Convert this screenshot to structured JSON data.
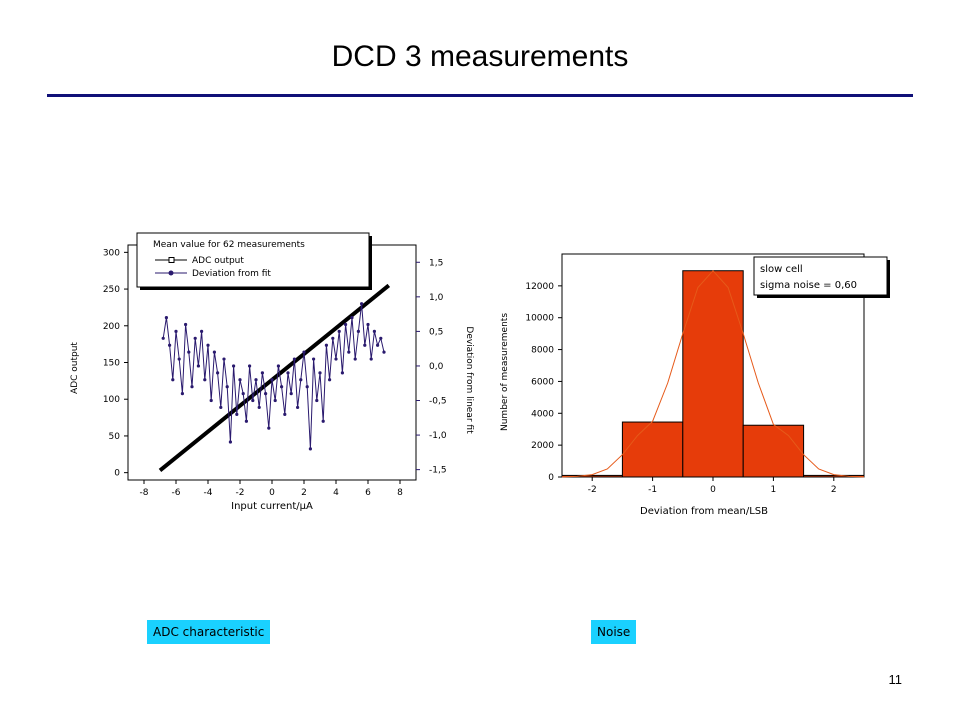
{
  "slide": {
    "title": "DCD 3 measurements",
    "page_number": "11",
    "captions": {
      "left": "ADC characteristic",
      "right": "Noise"
    },
    "colors": {
      "title_rule": "#101078",
      "caption_bg": "#1ad1ff",
      "adc_line": "#000000",
      "deviation_line": "#2a1a6e",
      "histogram_fill": "#e63c0a",
      "fit_curve": "#e65a1a"
    }
  },
  "chart_data": [
    {
      "type": "line",
      "xlabel": "Input current/µA",
      "ylabel": "ADC output",
      "y2label": "Deviation from linear fit",
      "xlim": [
        -9,
        9
      ],
      "ylim": [
        -10,
        310
      ],
      "y2lim": [
        -1.65,
        1.75
      ],
      "xticks": [
        "-8",
        "-6",
        "-4",
        "-2",
        "0",
        "2",
        "4",
        "6",
        "8"
      ],
      "yticks": [
        "0",
        "50",
        "100",
        "150",
        "200",
        "250",
        "300"
      ],
      "y2ticks": [
        "-1,5",
        "-1,0",
        "-0,5",
        "0,0",
        "0,5",
        "1,0",
        "1,5"
      ],
      "legend": {
        "title": "Mean value for 62 measurements",
        "entries": [
          "ADC output",
          "Deviation from fit"
        ],
        "placement": "top-left"
      },
      "series": [
        {
          "name": "ADC output",
          "axis": "left",
          "x": [
            -7.0,
            7.3
          ],
          "y": [
            3,
            255
          ]
        },
        {
          "name": "Deviation from fit",
          "axis": "right",
          "x": [
            -6.8,
            -6.6,
            -6.4,
            -6.2,
            -6.0,
            -5.8,
            -5.6,
            -5.4,
            -5.2,
            -5.0,
            -4.8,
            -4.6,
            -4.4,
            -4.2,
            -4.0,
            -3.8,
            -3.6,
            -3.4,
            -3.2,
            -3.0,
            -2.8,
            -2.6,
            -2.4,
            -2.2,
            -2.0,
            -1.8,
            -1.6,
            -1.4,
            -1.2,
            -1.0,
            -0.8,
            -0.6,
            -0.4,
            -0.2,
            0.0,
            0.2,
            0.4,
            0.6,
            0.8,
            1.0,
            1.2,
            1.4,
            1.6,
            1.8,
            2.0,
            2.2,
            2.4,
            2.6,
            2.8,
            3.0,
            3.2,
            3.4,
            3.6,
            3.8,
            4.0,
            4.2,
            4.4,
            4.6,
            4.8,
            5.0,
            5.2,
            5.4,
            5.6,
            5.8,
            6.0,
            6.2,
            6.4,
            6.6,
            6.8,
            7.0
          ],
          "y": [
            0.4,
            0.7,
            0.3,
            -0.2,
            0.5,
            0.1,
            -0.4,
            0.6,
            0.2,
            -0.3,
            0.4,
            0.0,
            0.5,
            -0.2,
            0.3,
            -0.5,
            0.2,
            -0.1,
            -0.6,
            0.1,
            -0.3,
            -1.1,
            0.0,
            -0.7,
            -0.2,
            -0.4,
            -0.8,
            0.0,
            -0.5,
            -0.2,
            -0.6,
            -0.1,
            -0.4,
            -0.9,
            -0.2,
            -0.5,
            0.0,
            -0.3,
            -0.7,
            -0.1,
            -0.4,
            0.1,
            -0.6,
            -0.2,
            0.2,
            -0.3,
            -1.2,
            0.1,
            -0.5,
            -0.1,
            -0.8,
            0.3,
            -0.2,
            0.4,
            0.1,
            0.5,
            -0.1,
            0.6,
            0.2,
            0.7,
            0.1,
            0.5,
            0.9,
            0.3,
            0.6,
            0.1,
            0.5,
            0.3,
            0.4,
            0.2
          ]
        }
      ]
    },
    {
      "type": "bar",
      "xlabel": "Deviation from mean/LSB",
      "ylabel": "Number of measurements",
      "xlim": [
        -2.5,
        2.5
      ],
      "ylim": [
        0,
        14000
      ],
      "xticks": [
        "-2",
        "-1",
        "0",
        "1",
        "2"
      ],
      "yticks": [
        "0",
        "2000",
        "4000",
        "6000",
        "8000",
        "10000",
        "12000"
      ],
      "categories": [
        "-2",
        "-1",
        "0",
        "1",
        "2"
      ],
      "values": [
        100,
        3450,
        12950,
        3250,
        100
      ],
      "fit_curve": {
        "x": [
          -2.5,
          -2.25,
          -2.0,
          -1.75,
          -1.5,
          -1.25,
          -1.0,
          -0.75,
          -0.5,
          -0.25,
          0.0,
          0.25,
          0.5,
          0.75,
          1.0,
          1.25,
          1.5,
          1.75,
          2.0,
          2.25,
          2.5
        ],
        "y": [
          5,
          40,
          150,
          500,
          1400,
          2600,
          3500,
          5900,
          9000,
          11900,
          12950,
          11900,
          9000,
          5900,
          3300,
          2600,
          1400,
          500,
          150,
          40,
          5
        ]
      },
      "legend": {
        "lines": [
          "slow cell",
          "sigma noise = 0,60"
        ],
        "placement": "top-right"
      }
    }
  ]
}
